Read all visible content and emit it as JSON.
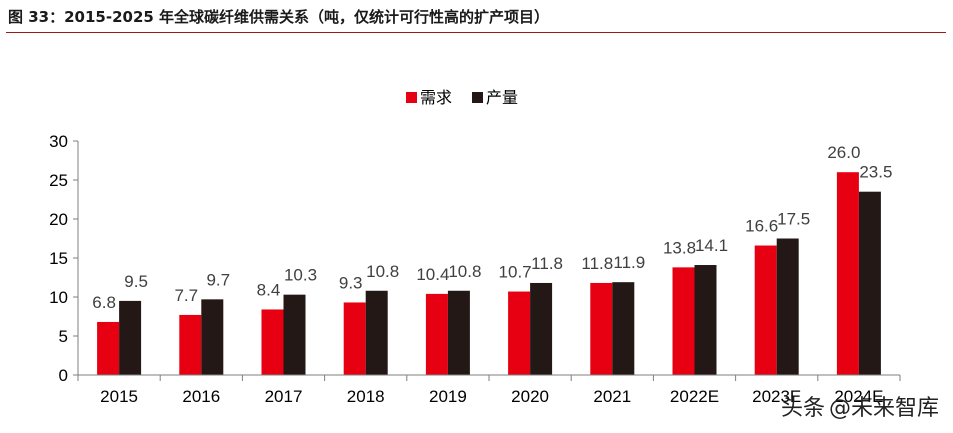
{
  "header": {
    "figure_title": "图 33：2015-2025 年全球碳纤维供需关系（吨，仅统计可行性高的扩产项目）"
  },
  "watermark": {
    "source": "头条",
    "account": "@未来智库"
  },
  "chart_data": {
    "type": "bar",
    "title": "",
    "xlabel": "",
    "ylabel": "",
    "ylim": [
      0,
      30
    ],
    "yticks": [
      0,
      5,
      10,
      15,
      20,
      25,
      30
    ],
    "legend_position": "top-center",
    "categories": [
      "2015",
      "2016",
      "2017",
      "2018",
      "2019",
      "2020",
      "2021",
      "2022E",
      "2023E",
      "2024E"
    ],
    "series": [
      {
        "name": "需求",
        "color": "#e60012",
        "values": [
          6.8,
          7.7,
          8.4,
          9.3,
          10.4,
          10.7,
          11.8,
          13.8,
          16.6,
          26.0
        ],
        "labels": [
          "6.8",
          "7.7",
          "8.4",
          "9.3",
          "10.4",
          "10.7",
          "11.8",
          "13.8",
          "16.6",
          "26.0"
        ]
      },
      {
        "name": "产量",
        "color": "#231815",
        "values": [
          9.5,
          9.7,
          10.3,
          10.8,
          10.8,
          11.8,
          11.9,
          14.1,
          17.5,
          23.5
        ],
        "labels": [
          "9.5",
          "9.7",
          "10.3",
          "10.8",
          "10.8",
          "11.8",
          "11.9",
          "14.1",
          "17.5",
          "23.5"
        ]
      }
    ]
  }
}
